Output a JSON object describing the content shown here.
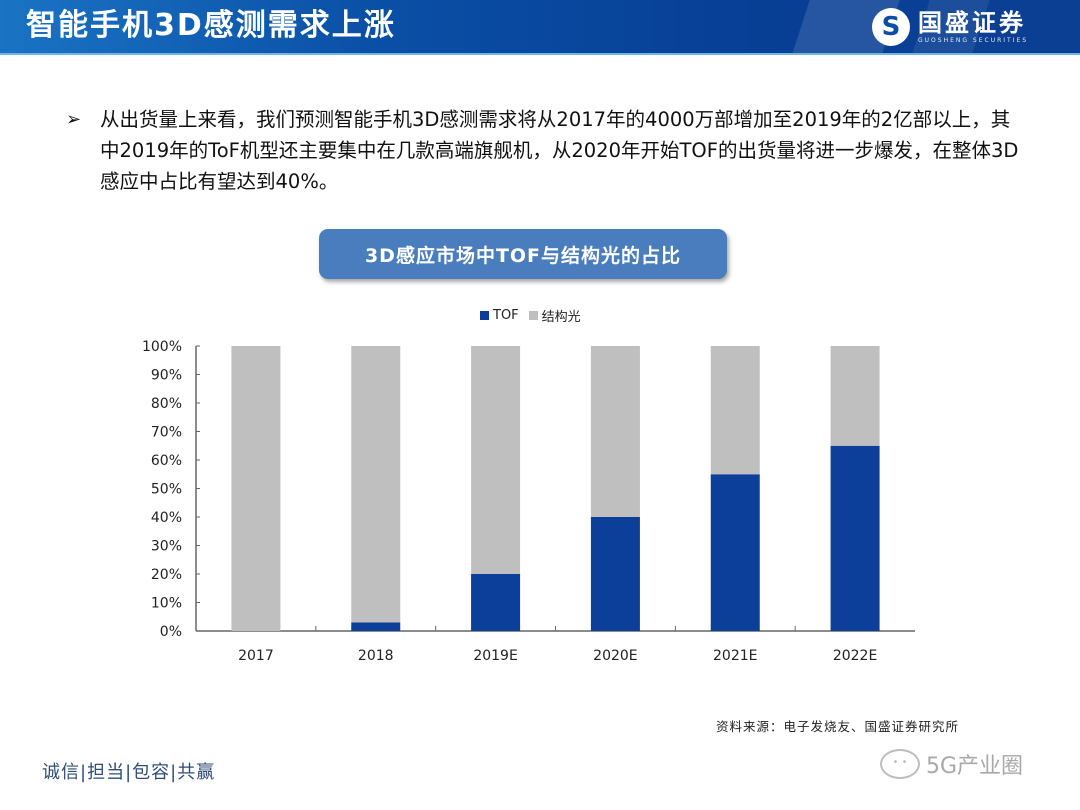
{
  "header": {
    "title": "智能手机3D感测需求上涨",
    "logo_icon": "guosheng-s-logo-icon",
    "logo_glyph": "S",
    "logo_cn": "国盛证券",
    "logo_en": "GUOSHENG SECURITIES"
  },
  "bullet": {
    "marker": "➢",
    "text": "从出货量上来看，我们预测智能手机3D感测需求将从2017年的4000万部增加至2019年的2亿部以上，其中2019年的ToF机型还主要集中在几款高端旗舰机，从2020年开始TOF的出货量将进一步爆发，在整体3D感应中占比有望达到40%。"
  },
  "chart_title": "3D感应市场中TOF与结构光的占比",
  "chart_data": {
    "type": "bar",
    "stacked": true,
    "title": "3D感应市场中TOF与结构光的占比",
    "categories": [
      "2017",
      "2018",
      "2019E",
      "2020E",
      "2021E",
      "2022E"
    ],
    "series": [
      {
        "name": "TOF",
        "color": "#0b3f99",
        "values": [
          0,
          3,
          20,
          40,
          55,
          65
        ]
      },
      {
        "name": "结构光",
        "color": "#bfbfbf",
        "values": [
          100,
          97,
          80,
          60,
          45,
          35
        ]
      }
    ],
    "xlabel": "",
    "ylabel": "",
    "ylim": [
      0,
      100
    ],
    "yticks": [
      "0%",
      "10%",
      "20%",
      "30%",
      "40%",
      "50%",
      "60%",
      "70%",
      "80%",
      "90%",
      "100%"
    ],
    "grid": false,
    "legend_position": "top-center"
  },
  "source": "资料来源：电子发烧友、国盛证券研究所",
  "watermark": "5G产业圈",
  "slogan": "诚信|担当|包容|共赢"
}
